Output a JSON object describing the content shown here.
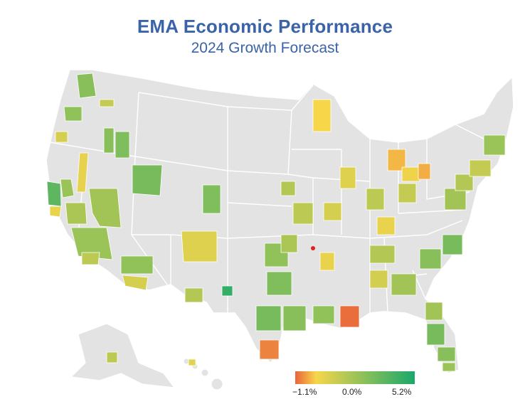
{
  "title": "EMA Economic Performance",
  "subtitle": "2024 Growth Forecast",
  "legend": {
    "min_label": "−1.1%",
    "mid_label": "0.0%",
    "max_label": "5.2%",
    "min_value": -1.1,
    "mid_value": 0.0,
    "max_value": 5.2,
    "colors": [
      "#e8643a",
      "#f7d64a",
      "#1aa86b"
    ]
  },
  "colors": {
    "land": "#e3e3e3",
    "border": "#ffffff",
    "title": "#3a63a8"
  },
  "regions": [
    {
      "id": "seattle",
      "v": 2.6
    },
    {
      "id": "spokane",
      "v": 1.2
    },
    {
      "id": "portland",
      "v": 2.4
    },
    {
      "id": "eugene",
      "v": 0.8
    },
    {
      "id": "boise",
      "v": 2.6
    },
    {
      "id": "boise2",
      "v": 2.8
    },
    {
      "id": "idaho-strip",
      "v": 0.4
    },
    {
      "id": "sacramento",
      "v": 2.2
    },
    {
      "id": "sf-bay",
      "v": 3.6
    },
    {
      "id": "reno",
      "v": 0.3
    },
    {
      "id": "fresno",
      "v": 1.8
    },
    {
      "id": "la",
      "v": 2.2
    },
    {
      "id": "lv",
      "v": 2.0
    },
    {
      "id": "sd",
      "v": 1.4
    },
    {
      "id": "phoenix",
      "v": 2.4
    },
    {
      "id": "tucson",
      "v": 0.8
    },
    {
      "id": "slc",
      "v": 3.0
    },
    {
      "id": "denver",
      "v": 2.8
    },
    {
      "id": "albuquerque",
      "v": 0.6
    },
    {
      "id": "el-paso",
      "v": 1.6
    },
    {
      "id": "odessa",
      "v": 4.6
    },
    {
      "id": "minneapolis",
      "v": 0.0
    },
    {
      "id": "omaha",
      "v": 1.6
    },
    {
      "id": "kc",
      "v": 1.4
    },
    {
      "id": "okc",
      "v": 2.4
    },
    {
      "id": "tulsa",
      "v": 1.8
    },
    {
      "id": "dfw",
      "v": 2.8
    },
    {
      "id": "austin",
      "v": 3.0
    },
    {
      "id": "san-antonio",
      "v": 2.6
    },
    {
      "id": "houston",
      "v": 2.4
    },
    {
      "id": "corpus",
      "v": -0.8
    },
    {
      "id": "new-orleans",
      "v": -1.0
    },
    {
      "id": "memphis",
      "v": 0.3
    },
    {
      "id": "nashville",
      "v": 1.6
    },
    {
      "id": "atlanta",
      "v": 2.0
    },
    {
      "id": "birmingham",
      "v": 0.9
    },
    {
      "id": "chicago",
      "v": 0.6
    },
    {
      "id": "detroit",
      "v": -0.3
    },
    {
      "id": "cleveland",
      "v": 0.2
    },
    {
      "id": "pittsburgh",
      "v": -0.4
    },
    {
      "id": "columbus",
      "v": 1.2
    },
    {
      "id": "indianapolis",
      "v": 1.4
    },
    {
      "id": "st-louis",
      "v": 0.8
    },
    {
      "id": "louisville",
      "v": 0.3
    },
    {
      "id": "charlotte",
      "v": 2.6
    },
    {
      "id": "raleigh",
      "v": 3.0
    },
    {
      "id": "dc",
      "v": 2.0
    },
    {
      "id": "philadelphia",
      "v": 1.6
    },
    {
      "id": "nyc",
      "v": 1.2
    },
    {
      "id": "boston",
      "v": 2.2
    },
    {
      "id": "jacksonville",
      "v": 2.0
    },
    {
      "id": "orlando",
      "v": 3.0
    },
    {
      "id": "tampa",
      "v": 2.6
    },
    {
      "id": "miami",
      "v": 2.2
    },
    {
      "id": "alaska",
      "v": 1.4
    },
    {
      "id": "hawaii",
      "v": 0.5
    }
  ]
}
